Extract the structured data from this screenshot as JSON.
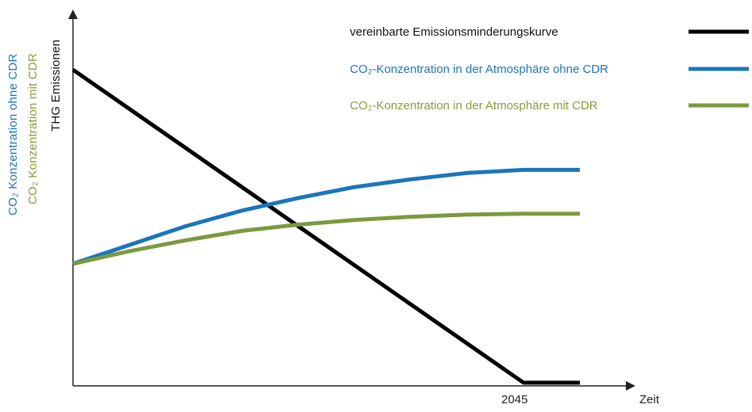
{
  "chart_data": {
    "type": "line",
    "title": "",
    "xlabel": "Zeit",
    "x_ticks": [
      "2045"
    ],
    "ylabels": [
      {
        "text": "CO₂ Konzentration ohne CDR",
        "color": "#1b75bb"
      },
      {
        "text": "CO₂ Konzentration mit CDR",
        "color": "#8a9a3c"
      },
      {
        "text": "THG Emissionen",
        "color": "#111111"
      }
    ],
    "grid": false,
    "legend_position": "top-right",
    "series": [
      {
        "name": "vereinbarte Emissionsminderungskurve",
        "color": "#000000",
        "points": [
          [
            0,
            100
          ],
          [
            80,
            0
          ],
          [
            90,
            0
          ]
        ]
      },
      {
        "name": "CO₂-Konzentration in der Atmosphäre ohne CDR",
        "color": "#1b75bb",
        "points": [
          [
            0,
            38
          ],
          [
            10,
            44
          ],
          [
            20,
            50
          ],
          [
            30,
            55
          ],
          [
            40,
            59
          ],
          [
            50,
            62.5
          ],
          [
            60,
            65
          ],
          [
            70,
            67
          ],
          [
            80,
            68
          ],
          [
            90,
            68
          ]
        ]
      },
      {
        "name": "CO₂-Konzentration in der Atmosphäre mit CDR",
        "color": "#7b9a3e",
        "points": [
          [
            0,
            38
          ],
          [
            10,
            42
          ],
          [
            20,
            45.5
          ],
          [
            30,
            48.5
          ],
          [
            40,
            50.5
          ],
          [
            50,
            52
          ],
          [
            60,
            53
          ],
          [
            70,
            53.7
          ],
          [
            80,
            54
          ],
          [
            90,
            54
          ]
        ]
      }
    ]
  }
}
